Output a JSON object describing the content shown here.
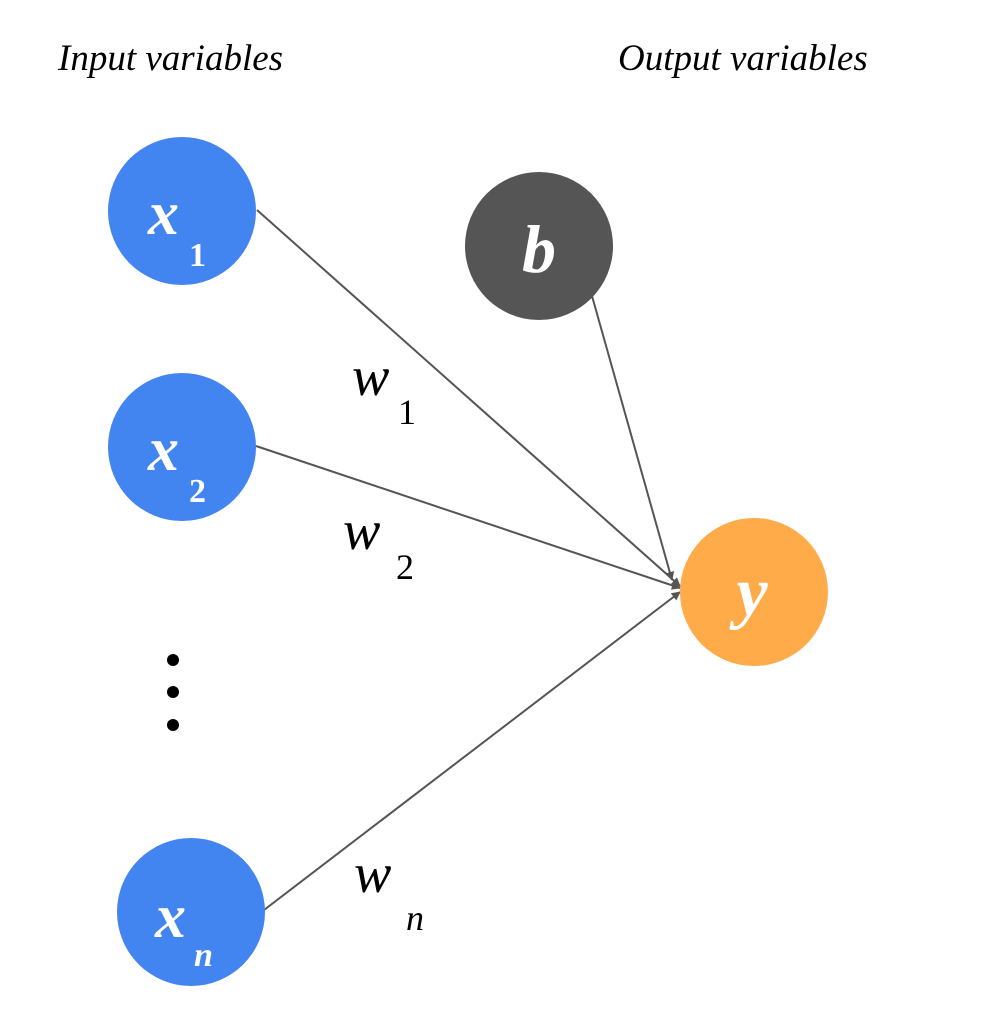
{
  "captions": {
    "input": "Input variables",
    "output": "Output variables"
  },
  "nodes": {
    "x1": {
      "main": "x",
      "sub": "1"
    },
    "x2": {
      "main": "x",
      "sub": "2"
    },
    "xn": {
      "main": "x",
      "sub": "n"
    },
    "b": {
      "main": "b"
    },
    "y": {
      "main": "y"
    }
  },
  "weights": {
    "w1": {
      "main": "w",
      "sub": "1"
    },
    "w2": {
      "main": "w",
      "sub": "2"
    },
    "wn": {
      "main": "w",
      "sub": "n"
    }
  },
  "colors": {
    "input_node": "#4285f0",
    "bias_node": "#555555",
    "output_node": "#ffab4a",
    "edge": "#555555"
  },
  "ellipsis_icon": "vertical-ellipsis-icon"
}
